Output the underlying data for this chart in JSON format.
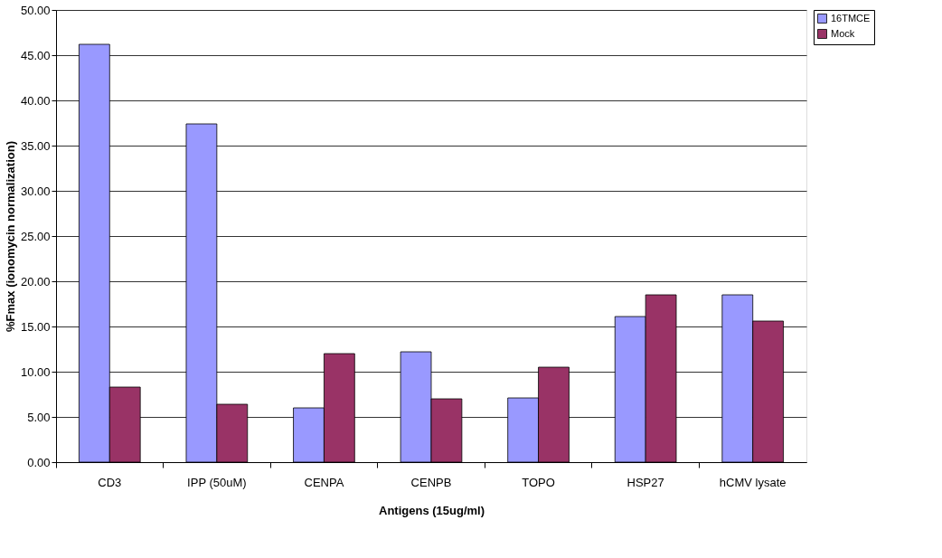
{
  "chart_data": {
    "type": "bar",
    "xlabel": "Antigens (15ug/ml)",
    "ylabel": "%Fmax (ionomycin normalization)",
    "categories": [
      "CD3",
      "IPP (50uM)",
      "CENPA",
      "CENPB",
      "TOPO",
      "HSP27",
      "hCMV lysate"
    ],
    "series": [
      {
        "name": "16TMCE",
        "color": "#9999ff",
        "values": [
          46.2,
          37.4,
          6.0,
          12.2,
          7.1,
          16.1,
          18.5
        ]
      },
      {
        "name": "Mock",
        "color": "#993366",
        "values": [
          8.3,
          6.4,
          12.0,
          7.0,
          10.5,
          18.5,
          15.6
        ]
      }
    ],
    "ylim": [
      0,
      50
    ],
    "yticks": [
      {
        "value": 0,
        "label": "0.00"
      },
      {
        "value": 5,
        "label": "5.00"
      },
      {
        "value": 10,
        "label": "10.00"
      },
      {
        "value": 15,
        "label": "15.00"
      },
      {
        "value": 20,
        "label": "20.00"
      },
      {
        "value": 25,
        "label": "25.00"
      },
      {
        "value": 30,
        "label": "30.00"
      },
      {
        "value": 35,
        "label": "35.00"
      },
      {
        "value": 40,
        "label": "40.00"
      },
      {
        "value": 45,
        "label": "45.00"
      },
      {
        "value": 50,
        "label": "50.00"
      }
    ],
    "grid": "y",
    "legend": "right"
  }
}
